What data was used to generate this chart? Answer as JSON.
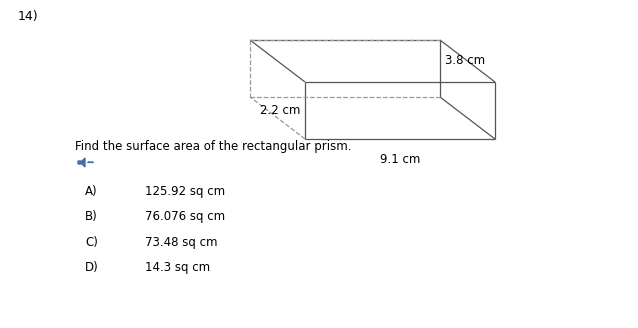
{
  "question_number": "14)",
  "question_text": "Find the surface area of the rectangular prism.",
  "options": [
    {
      "label": "A)",
      "text": "125.92 sq cm"
    },
    {
      "label": "B)",
      "text": "76.076 sq cm"
    },
    {
      "label": "C)",
      "text": "73.48 sq cm"
    },
    {
      "label": "D)",
      "text": "14.3 sq cm"
    }
  ],
  "dim_height": "2.2 cm",
  "dim_length": "9.1 cm",
  "dim_depth": "3.8 cm",
  "bg_color": "#ffffff",
  "text_color": "#000000",
  "solid_color": "#555555",
  "dashed_color": "#999999",
  "font_size_main": 8.5,
  "font_size_options": 8.5,
  "font_size_number": 9,
  "speaker_color": "#4a6fa5"
}
